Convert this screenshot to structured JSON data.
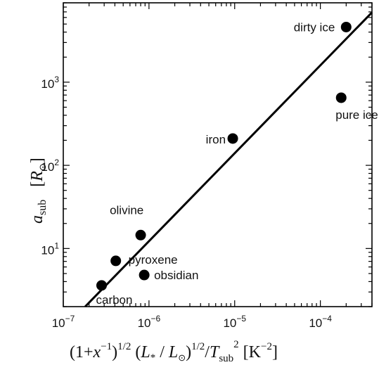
{
  "chart_data": {
    "type": "scatter",
    "x_scale": "log",
    "y_scale": "log",
    "xlim": [
      1e-07,
      0.0004
    ],
    "ylim": [
      2.0,
      9000
    ],
    "grid": false,
    "x_ticks": [
      {
        "value": 1e-07,
        "base": "10",
        "exp": "−7"
      },
      {
        "value": 1e-06,
        "base": "10",
        "exp": "−6"
      },
      {
        "value": 1e-05,
        "base": "10",
        "exp": "−5"
      },
      {
        "value": 0.0001,
        "base": "10",
        "exp": "−4"
      }
    ],
    "y_ticks": [
      {
        "value": 10,
        "base": "10",
        "exp": "1"
      },
      {
        "value": 100,
        "base": "10",
        "exp": "2"
      },
      {
        "value": 1000,
        "base": "10",
        "exp": "3"
      }
    ],
    "xlabel": {
      "open": "(1+",
      "x": "x",
      "x_exp": "−1",
      "close1": ")",
      "half1": "1/2",
      "L_open": " (",
      "L": "L",
      "star": "*",
      "slash": " / ",
      "Lsun": "L",
      "sun": "⊙",
      "L_close": ")",
      "half2": "1/2",
      "div": "/",
      "T": "T",
      "sub": "sub",
      "two": "2",
      "unit_open": "   [K",
      "unit_exp": "−2",
      "unit_close": "]"
    },
    "ylabel": {
      "a": "a",
      "sub": "sub",
      "unit_open": "[",
      "R": "R",
      "sun": "⊙",
      "unit_close": "]"
    },
    "points": [
      {
        "label": "dirty ice",
        "x": 0.0002,
        "y": 4600
      },
      {
        "label": "pure ice",
        "x": 0.000175,
        "y": 650
      },
      {
        "label": "iron",
        "x": 9.5e-06,
        "y": 210
      },
      {
        "label": "olivine",
        "x": 8e-07,
        "y": 14.5
      },
      {
        "label": "pyroxene",
        "x": 4.1e-07,
        "y": 7.1
      },
      {
        "label": "obsidian",
        "x": 8.8e-07,
        "y": 4.8
      },
      {
        "label": "carbon",
        "x": 2.8e-07,
        "y": 3.6
      }
    ],
    "fit_line": {
      "x": [
        1.8e-07,
        0.0004
      ],
      "y": [
        2.0,
        6900
      ]
    }
  }
}
